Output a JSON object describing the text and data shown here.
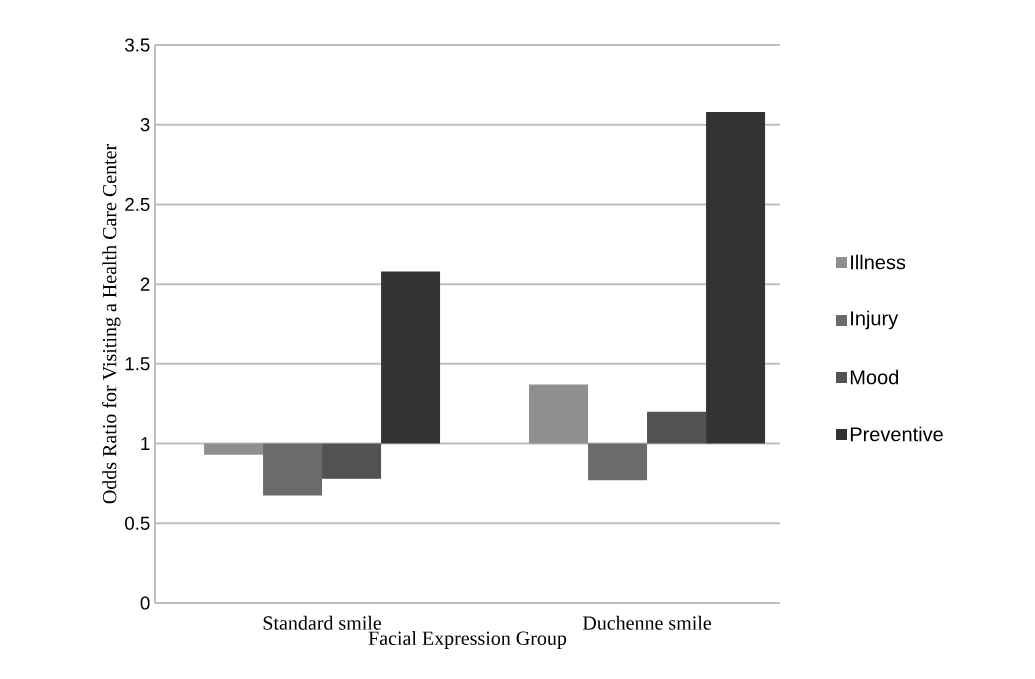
{
  "chart_data": {
    "type": "bar",
    "ylabel": "Odds Ratio for Visiting a Health Care Center",
    "xlabel": "Facial Expression Group",
    "categories": [
      "Standard smile",
      "Duchenne smile"
    ],
    "series": [
      {
        "name": "Illness",
        "color": "#8f8f8f",
        "base": [
          1,
          1
        ],
        "values": [
          -0.07,
          0.37
        ]
      },
      {
        "name": "Injury",
        "color": "#6b6b6b",
        "base": [
          1,
          1
        ],
        "values": [
          -0.325,
          -0.23
        ]
      },
      {
        "name": "Mood",
        "color": "#525252",
        "base": [
          1,
          1
        ],
        "values": [
          -0.22,
          0.2
        ]
      },
      {
        "name": "Preventive",
        "color": "#333333",
        "base": [
          1,
          1
        ],
        "values": [
          1.08,
          2.08
        ]
      }
    ],
    "ylim": [
      0,
      3.5
    ],
    "yticks": [
      0,
      0.5,
      1,
      1.5,
      2,
      2.5,
      3,
      3.5
    ],
    "grid": "y",
    "legend": "right"
  }
}
